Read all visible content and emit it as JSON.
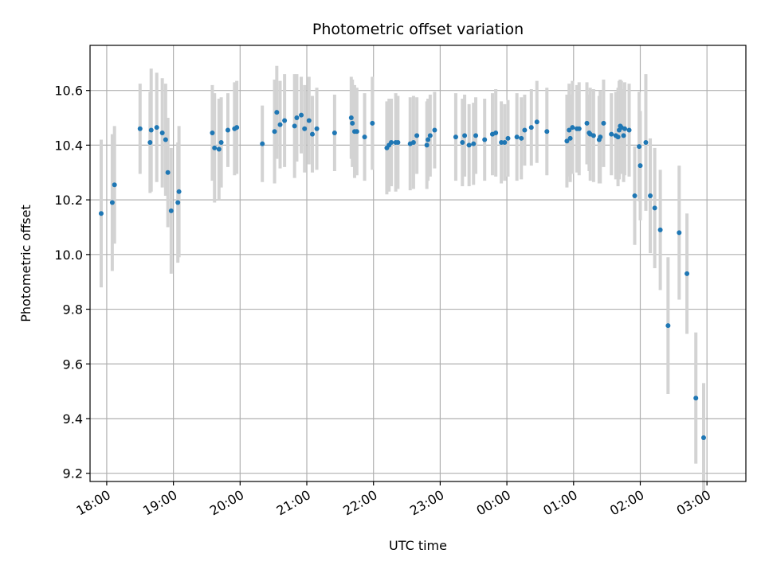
{
  "chart_data": {
    "type": "scatter",
    "title": "Photometric offset variation",
    "xlabel": "UTC time",
    "ylabel": "Photometric offset",
    "x_axis_kind": "time (hours, UTC, wrapping past midnight)",
    "xlim": [
      "17:45",
      "03:35"
    ],
    "ylim": [
      9.17,
      10.765
    ],
    "xticks": [
      "18:00",
      "19:00",
      "20:00",
      "21:00",
      "22:00",
      "23:00",
      "00:00",
      "01:00",
      "02:00",
      "03:00"
    ],
    "yticks": [
      "9.2",
      "9.4",
      "9.6",
      "9.8",
      "10.0",
      "10.2",
      "10.4",
      "10.6"
    ],
    "grid": true,
    "legend": "none",
    "colors": {
      "points": "#1f77b4",
      "errorbars": "#d3d3d3",
      "grid": "#b0b0b0"
    },
    "series": [
      {
        "x": [
          "17:55",
          "18:05",
          "18:07",
          "18:30",
          "18:39",
          "18:40",
          "18:45",
          "18:50",
          "18:53",
          "18:55",
          "18:58",
          "19:04",
          "19:05",
          "19:35",
          "19:37",
          "19:41",
          "19:43",
          "19:49",
          "19:55",
          "19:57",
          "20:20",
          "20:31",
          "20:33",
          "20:36",
          "20:40",
          "20:49",
          "20:51",
          "20:55",
          "20:58",
          "21:02",
          "21:05",
          "21:09",
          "21:25",
          "21:40",
          "21:41",
          "21:43",
          "21:45",
          "21:52",
          "21:59",
          "22:12",
          "22:14",
          "22:16",
          "22:20",
          "22:22",
          "22:33",
          "22:36",
          "22:39",
          "22:48",
          "22:49",
          "22:51",
          "22:55",
          "23:14",
          "23:20",
          "23:22",
          "23:26",
          "23:30",
          "23:32",
          "23:40",
          "23:47",
          "23:50",
          "23:55",
          "23:58",
          "00:01",
          "00:09",
          "00:13",
          "00:16",
          "00:22",
          "00:27",
          "00:36",
          "00:54",
          "00:56",
          "00:57",
          "00:59",
          "01:03",
          "01:05",
          "01:12",
          "01:14",
          "01:15",
          "01:18",
          "01:23",
          "01:24",
          "01:27",
          "01:34",
          "01:38",
          "01:40",
          "01:41",
          "01:42",
          "01:43",
          "01:45",
          "01:46",
          "01:50",
          "01:55",
          "01:59",
          "02:00",
          "02:05",
          "02:09",
          "02:13",
          "02:18",
          "02:25",
          "02:35",
          "02:42",
          "02:50",
          "02:57"
        ],
        "y": [
          10.15,
          10.19,
          10.255,
          10.46,
          10.41,
          10.455,
          10.465,
          10.445,
          10.42,
          10.3,
          10.16,
          10.19,
          10.23,
          10.445,
          10.39,
          10.385,
          10.41,
          10.455,
          10.46,
          10.465,
          10.405,
          10.45,
          10.52,
          10.475,
          10.49,
          10.47,
          10.5,
          10.51,
          10.46,
          10.49,
          10.44,
          10.46,
          10.445,
          10.5,
          10.48,
          10.45,
          10.45,
          10.43,
          10.48,
          10.39,
          10.4,
          10.41,
          10.41,
          10.41,
          10.405,
          10.41,
          10.435,
          10.4,
          10.42,
          10.435,
          10.455,
          10.43,
          10.41,
          10.435,
          10.4,
          10.405,
          10.435,
          10.42,
          10.44,
          10.445,
          10.41,
          10.41,
          10.425,
          10.43,
          10.425,
          10.455,
          10.465,
          10.485,
          10.45,
          10.415,
          10.455,
          10.425,
          10.465,
          10.46,
          10.46,
          10.48,
          10.445,
          10.44,
          10.435,
          10.42,
          10.43,
          10.48,
          10.44,
          10.435,
          10.43,
          10.455,
          10.47,
          10.465,
          10.435,
          10.46,
          10.455,
          10.215,
          10.395,
          10.325,
          10.41,
          10.215,
          10.17,
          10.09,
          9.74,
          10.08,
          9.93,
          9.475,
          9.33
        ],
        "yerr": [
          0.27,
          0.25,
          0.215,
          0.165,
          0.185,
          0.225,
          0.2,
          0.2,
          0.205,
          0.2,
          0.23,
          0.22,
          0.24,
          0.175,
          0.2,
          0.185,
          0.165,
          0.135,
          0.17,
          0.17,
          0.14,
          0.19,
          0.17,
          0.16,
          0.17,
          0.19,
          0.16,
          0.14,
          0.16,
          0.16,
          0.14,
          0.15,
          0.14,
          0.15,
          0.16,
          0.17,
          0.16,
          0.16,
          0.17,
          0.17,
          0.17,
          0.16,
          0.18,
          0.17,
          0.17,
          0.17,
          0.14,
          0.16,
          0.15,
          0.15,
          0.14,
          0.16,
          0.16,
          0.15,
          0.15,
          0.15,
          0.14,
          0.15,
          0.15,
          0.16,
          0.15,
          0.14,
          0.14,
          0.16,
          0.15,
          0.13,
          0.14,
          0.15,
          0.16,
          0.17,
          0.17,
          0.16,
          0.17,
          0.16,
          0.17,
          0.15,
          0.14,
          0.17,
          0.17,
          0.16,
          0.17,
          0.16,
          0.15,
          0.16,
          0.18,
          0.18,
          0.17,
          0.17,
          0.17,
          0.17,
          0.17,
          0.18,
          0.2,
          0.2,
          0.25,
          0.21,
          0.22,
          0.22,
          0.25,
          0.245,
          0.22,
          0.24,
          0.2
        ]
      }
    ]
  }
}
